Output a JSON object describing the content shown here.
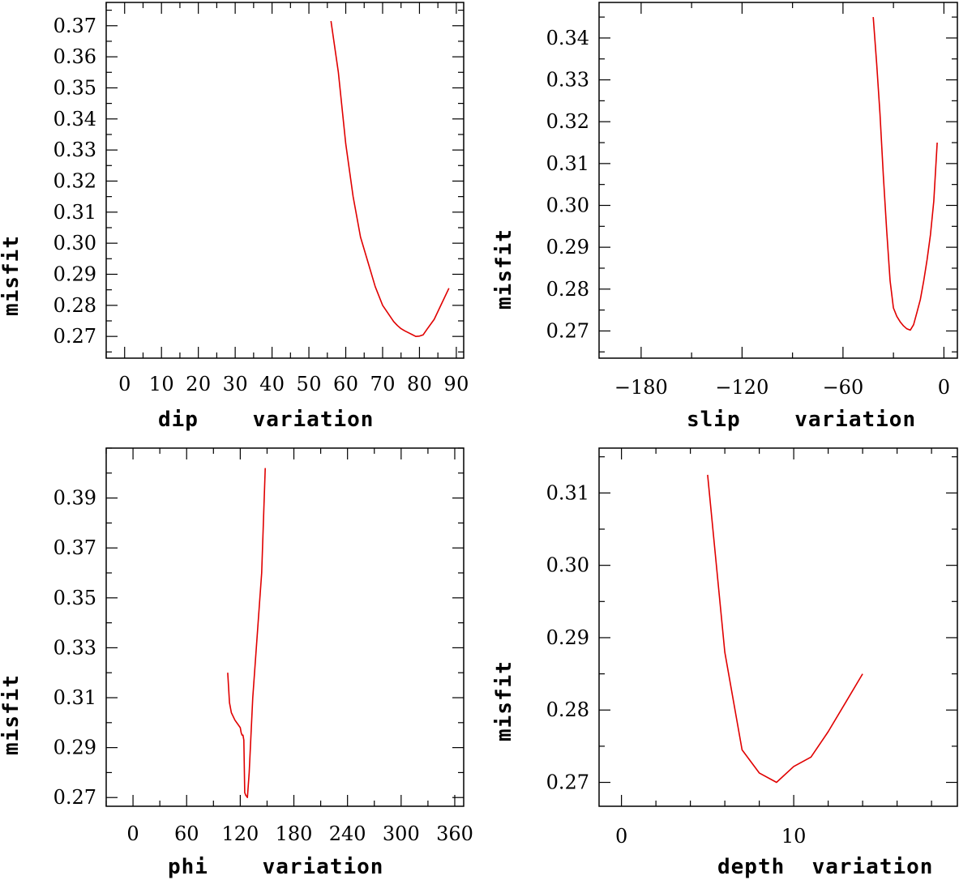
{
  "chart_data": [
    {
      "type": "line",
      "id": "dip",
      "xlabel": "dip    variation",
      "ylabel": "misfit",
      "xlim": [
        -5,
        92
      ],
      "ylim": [
        0.263,
        0.3775
      ],
      "xticks": [
        0,
        10,
        20,
        30,
        40,
        50,
        60,
        70,
        80,
        90
      ],
      "xtick_labels": [
        "0",
        "10",
        "20",
        "30",
        "40",
        "50",
        "60",
        "70",
        "80",
        "90"
      ],
      "yticks": [
        0.27,
        0.28,
        0.29,
        0.3,
        0.31,
        0.32,
        0.33,
        0.34,
        0.35,
        0.36,
        0.37
      ],
      "ytick_labels": [
        "0.27",
        "0.28",
        "0.29",
        "0.30",
        "0.31",
        "0.32",
        "0.33",
        "0.34",
        "0.35",
        "0.36",
        "0.37"
      ],
      "x": [
        56,
        58,
        60,
        62,
        64,
        66,
        68,
        70,
        72,
        73,
        74,
        75,
        76,
        77,
        78,
        79,
        80,
        81,
        82,
        84,
        86,
        88
      ],
      "y": [
        0.3715,
        0.355,
        0.332,
        0.315,
        0.302,
        0.294,
        0.286,
        0.28,
        0.2765,
        0.2748,
        0.2735,
        0.2725,
        0.2718,
        0.2712,
        0.2706,
        0.27,
        0.2701,
        0.2705,
        0.2722,
        0.2755,
        0.2805,
        0.2855
      ]
    },
    {
      "type": "line",
      "id": "slip",
      "xlabel": "slip    variation",
      "ylabel": "misfit",
      "xlim": [
        -205,
        8
      ],
      "ylim": [
        0.2635,
        0.3485
      ],
      "xticks": [
        -180,
        -120,
        -60,
        0
      ],
      "xtick_labels": [
        "−180",
        "−120",
        "−60",
        "0"
      ],
      "yticks": [
        0.27,
        0.28,
        0.29,
        0.3,
        0.31,
        0.32,
        0.33,
        0.34
      ],
      "ytick_labels": [
        "0.27",
        "0.28",
        "0.29",
        "0.30",
        "0.31",
        "0.32",
        "0.33",
        "0.34"
      ],
      "x": [
        -42,
        -40,
        -38,
        -36,
        -34,
        -32,
        -30,
        -28,
        -26,
        -24,
        -22,
        -20,
        -18,
        -16,
        -14,
        -12,
        -10,
        -8,
        -6,
        -4
      ],
      "y": [
        0.345,
        0.334,
        0.322,
        0.307,
        0.294,
        0.282,
        0.2755,
        0.2735,
        0.2722,
        0.2712,
        0.2705,
        0.2702,
        0.2715,
        0.2745,
        0.2775,
        0.282,
        0.287,
        0.293,
        0.301,
        0.315
      ]
    },
    {
      "type": "line",
      "id": "phi",
      "xlabel": "phi    variation",
      "ylabel": "misfit",
      "xlim": [
        -30,
        370
      ],
      "ylim": [
        0.2665,
        0.41
      ],
      "xticks": [
        0,
        60,
        120,
        180,
        240,
        300,
        360
      ],
      "xtick_labels": [
        "0",
        "60",
        "120",
        "180",
        "240",
        "300",
        "360"
      ],
      "yticks": [
        0.27,
        0.29,
        0.31,
        0.33,
        0.35,
        0.37,
        0.39
      ],
      "ytick_labels": [
        "0.27",
        "0.29",
        "0.31",
        "0.33",
        "0.35",
        "0.37",
        "0.39"
      ],
      "x": [
        106,
        108,
        110,
        114,
        118,
        120,
        121,
        122,
        123,
        124,
        125,
        126,
        128,
        130,
        134,
        140,
        144,
        148
      ],
      "y": [
        0.32,
        0.308,
        0.304,
        0.301,
        0.299,
        0.298,
        0.296,
        0.295,
        0.295,
        0.293,
        0.272,
        0.271,
        0.27,
        0.28,
        0.31,
        0.34,
        0.36,
        0.402
      ]
    },
    {
      "type": "line",
      "id": "depth",
      "xlabel": "depth  variation",
      "ylabel": "misfit",
      "xlim": [
        -1.3,
        19.5
      ],
      "ylim": [
        0.2667,
        0.3162
      ],
      "xticks": [
        0,
        10
      ],
      "xtick_labels": [
        "0",
        "10"
      ],
      "yticks": [
        0.27,
        0.28,
        0.29,
        0.3,
        0.31
      ],
      "ytick_labels": [
        "0.27",
        "0.28",
        "0.29",
        "0.30",
        "0.31"
      ],
      "x": [
        5,
        6,
        7,
        8,
        9,
        10,
        11,
        12,
        13,
        14
      ],
      "y": [
        0.3125,
        0.288,
        0.2745,
        0.2713,
        0.27,
        0.2722,
        0.2735,
        0.277,
        0.281,
        0.285
      ]
    }
  ]
}
